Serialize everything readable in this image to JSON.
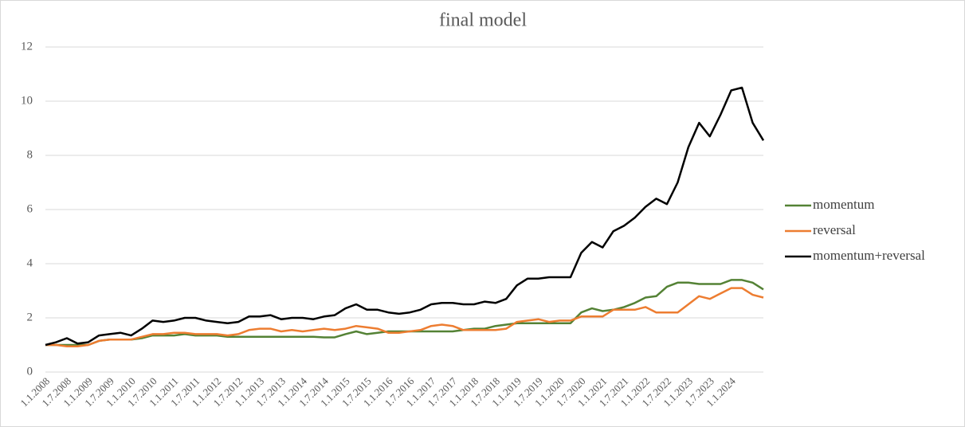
{
  "chart_data": {
    "type": "line",
    "title": "final model",
    "categories": [
      "1.1.2008",
      null,
      "1.7.2008",
      null,
      "1.1.2009",
      null,
      "1.7.2009",
      null,
      "1.1.2010",
      null,
      "1.7.2010",
      null,
      "1.1.2011",
      null,
      "1.7.2011",
      null,
      "1.1.2012",
      null,
      "1.7.2012",
      null,
      "1.1.2013",
      null,
      "1.7.2013",
      null,
      "1.1.2014",
      null,
      "1.7.2014",
      null,
      "1.1.2015",
      null,
      "1.7.2015",
      null,
      "1.1.2016",
      null,
      "1.7.2016",
      null,
      "1.1.2017",
      null,
      "1.7.2017",
      null,
      "1.1.2018",
      null,
      "1.7.2018",
      null,
      "1.1.2019",
      null,
      "1.7.2019",
      null,
      "1.1.2020",
      null,
      "1.7.2020",
      null,
      "1.1.2021",
      null,
      "1.7.2021",
      null,
      "1.1.2022",
      null,
      "1.7.2022",
      null,
      "1.1.2023",
      null,
      "1.7.2023",
      null,
      "1.1.2024",
      null,
      null,
      null
    ],
    "series": [
      {
        "name": "momentum",
        "color": "#548235",
        "values": [
          1.0,
          1.0,
          1.0,
          1.0,
          1.0,
          1.15,
          1.2,
          1.2,
          1.2,
          1.25,
          1.35,
          1.35,
          1.35,
          1.4,
          1.35,
          1.35,
          1.35,
          1.3,
          1.3,
          1.3,
          1.3,
          1.3,
          1.3,
          1.3,
          1.3,
          1.3,
          1.28,
          1.28,
          1.4,
          1.5,
          1.4,
          1.45,
          1.5,
          1.5,
          1.5,
          1.5,
          1.5,
          1.5,
          1.5,
          1.55,
          1.6,
          1.6,
          1.7,
          1.75,
          1.8,
          1.8,
          1.8,
          1.8,
          1.8,
          1.8,
          2.2,
          2.35,
          2.25,
          2.3,
          2.4,
          2.55,
          2.75,
          2.8,
          3.15,
          3.3,
          3.3,
          3.25,
          3.25,
          3.25,
          3.4,
          3.4,
          3.3,
          3.05
        ]
      },
      {
        "name": "reversal",
        "color": "#ed7d31",
        "values": [
          1.0,
          1.0,
          0.95,
          0.95,
          1.0,
          1.15,
          1.2,
          1.2,
          1.2,
          1.3,
          1.4,
          1.4,
          1.45,
          1.45,
          1.4,
          1.4,
          1.4,
          1.35,
          1.4,
          1.55,
          1.6,
          1.6,
          1.5,
          1.55,
          1.5,
          1.55,
          1.6,
          1.55,
          1.6,
          1.7,
          1.65,
          1.6,
          1.45,
          1.45,
          1.5,
          1.55,
          1.7,
          1.75,
          1.7,
          1.55,
          1.55,
          1.55,
          1.55,
          1.6,
          1.85,
          1.9,
          1.95,
          1.85,
          1.9,
          1.9,
          2.05,
          2.05,
          2.05,
          2.3,
          2.3,
          2.3,
          2.4,
          2.2,
          2.2,
          2.2,
          2.5,
          2.8,
          2.7,
          2.9,
          3.1,
          3.1,
          2.85,
          2.75
        ]
      },
      {
        "name": "momentum+reversal",
        "color": "#000000",
        "values": [
          1.0,
          1.1,
          1.25,
          1.05,
          1.1,
          1.35,
          1.4,
          1.45,
          1.35,
          1.6,
          1.9,
          1.85,
          1.9,
          2.0,
          2.0,
          1.9,
          1.85,
          1.8,
          1.85,
          2.05,
          2.05,
          2.1,
          1.95,
          2.0,
          2.0,
          1.95,
          2.05,
          2.1,
          2.35,
          2.5,
          2.3,
          2.3,
          2.2,
          2.15,
          2.2,
          2.3,
          2.5,
          2.55,
          2.55,
          2.5,
          2.5,
          2.6,
          2.55,
          2.7,
          3.2,
          3.45,
          3.45,
          3.5,
          3.5,
          3.5,
          4.4,
          4.8,
          4.6,
          5.2,
          5.4,
          5.7,
          6.1,
          6.4,
          6.2,
          7.0,
          8.3,
          9.2,
          8.7,
          9.5,
          10.4,
          10.5,
          9.2,
          8.55
        ]
      }
    ],
    "ylim": [
      0,
      12
    ],
    "yticks": [
      0,
      2,
      4,
      6,
      8,
      10,
      12
    ],
    "grid": true,
    "legend": "right"
  }
}
